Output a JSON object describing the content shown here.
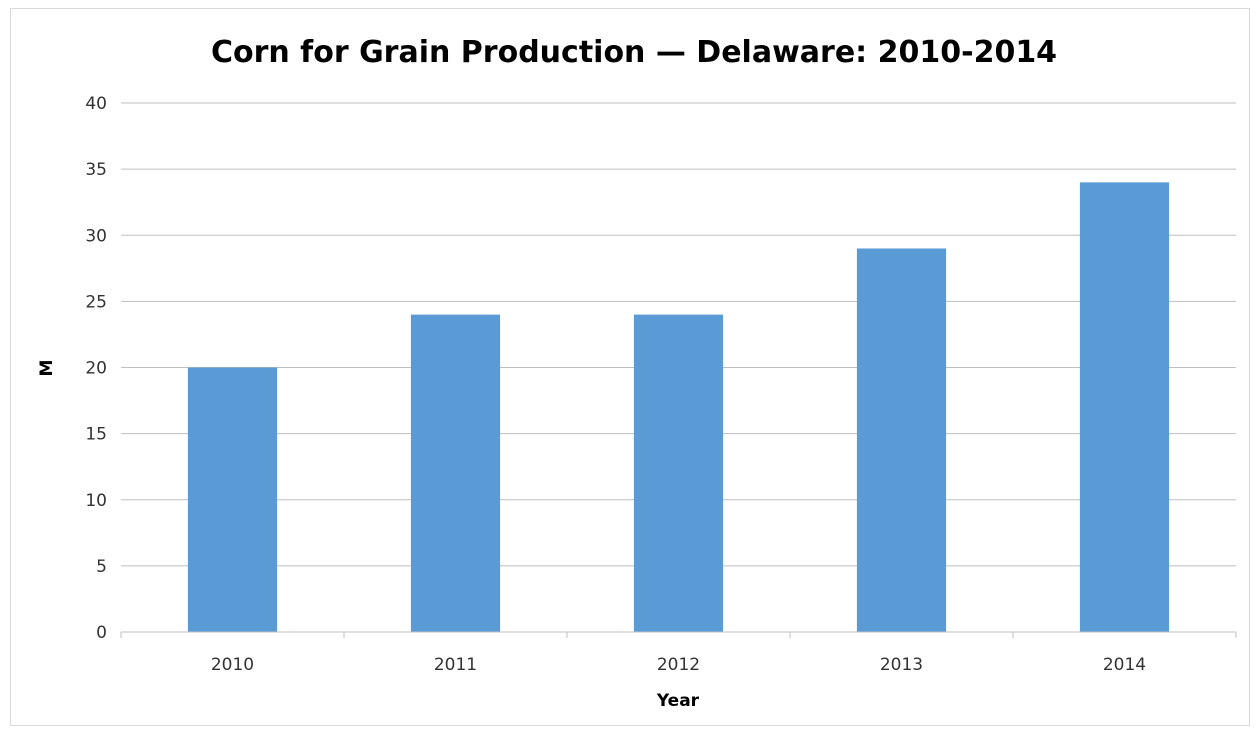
{
  "chart_data": {
    "type": "bar",
    "title": "Corn for Grain Production — Delaware: 2010-2014",
    "xlabel": "Year",
    "ylabel": "M",
    "categories": [
      "2010",
      "2011",
      "2012",
      "2013",
      "2014"
    ],
    "values": [
      20,
      24,
      24,
      29,
      34
    ],
    "ylim": [
      0,
      40
    ],
    "yticks": [
      "0",
      "5",
      "10",
      "15",
      "20",
      "25",
      "30",
      "35",
      "40"
    ],
    "grid": "horizontal",
    "legend": "none",
    "bar_color": "#5b9bd5"
  }
}
